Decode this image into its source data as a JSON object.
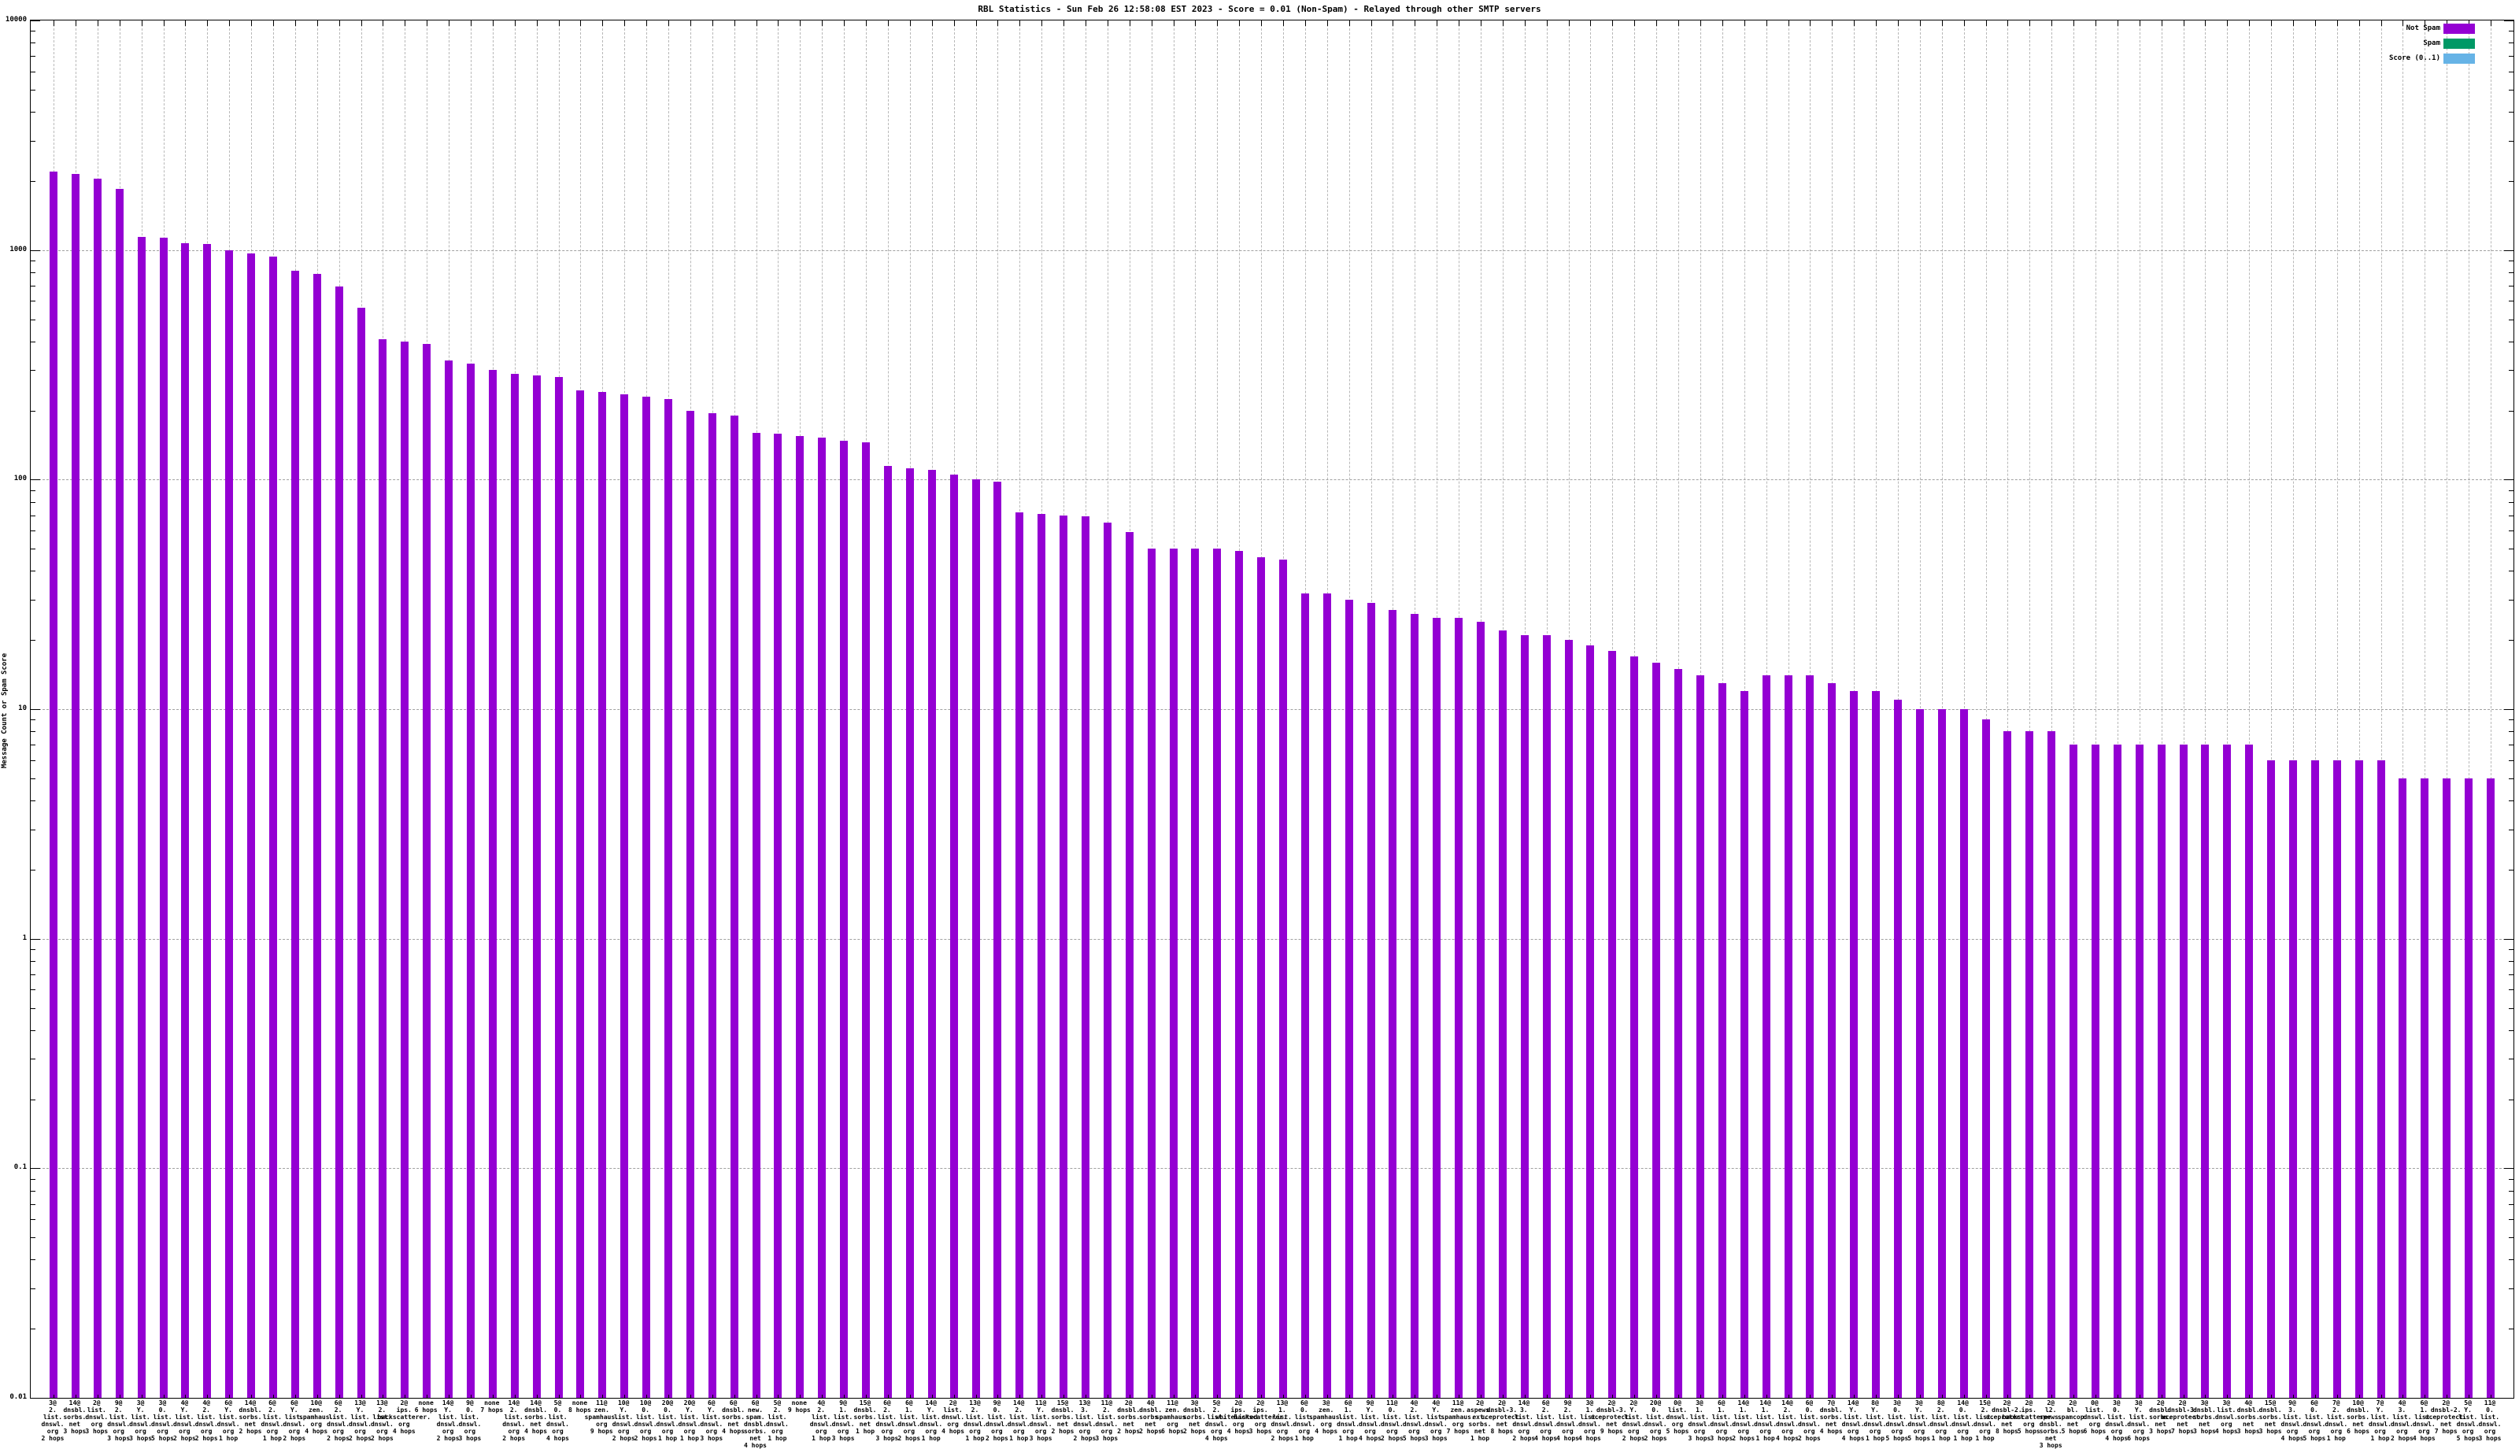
{
  "chart_data": {
    "type": "bar",
    "title": "RBL Statistics - Sun Feb 26 12:58:08 EST 2023 - Score = 0.01 (Non-Spam) - Relayed through other SMTP servers",
    "ylabel": "Message Count or Spam Score",
    "yscale": "log",
    "ylim": [
      0.01,
      10000
    ],
    "ytick_labels": [
      "10000",
      "1000",
      "100",
      "10",
      "1",
      "0.1",
      "0.01"
    ],
    "grid": "dashed",
    "legend_position": "top-right",
    "legend": [
      {
        "label": "Not Spam",
        "color": "#9400d3"
      },
      {
        "label": "Spam",
        "color": "#009966"
      },
      {
        "label": "Score (0..1)",
        "color": "#66b3e6"
      }
    ],
    "categories": [
      "3@ 2.list.dnswl.org 2 hops",
      "14@ dnsbl.sorbs.net 3 hops",
      "2@ list.dnswl.org 3 hops",
      "9@ 2.list.dnswl.org 3 hops",
      "3@ Y.list.dnswl.org 3 hops",
      "3@ 0.list.dnswl.org 5 hops",
      "4@ Y.list.dnswl.org 2 hops",
      "4@ 2.list.dnswl.org 2 hops",
      "6@ Y.list.dnswl.org 1 hop",
      "14@ dnsbl.sorbs.net 2 hops",
      "6@ 2.list.dnswl.org 1 hop",
      "6@ Y.list.dnswl.org 2 hops",
      "10@ zen.spamhaus.org 4 hops",
      "6@ 2.list.dnswl.org 2 hops",
      "13@ Y.list.dnswl.org 2 hops",
      "13@ 2.list.dnswl.org 2 hops",
      "2@ ips.backscatterer.org 4 hops",
      "none 6 hops",
      "14@ Y.list.dnswl.org 2 hops",
      "9@ 0.list.dnswl.org 3 hops",
      "none 7 hops",
      "14@ 2.list.dnswl.org 2 hops",
      "14@ dnsbl.sorbs.net 4 hops",
      "5@ 0.list.dnswl.org 4 hops",
      "none 8 hops",
      "11@ zen.spamhaus.org 9 hops",
      "10@ Y.list.dnswl.org 2 hops",
      "10@ 0.list.dnswl.org 2 hops",
      "20@ 0.list.dnswl.org 1 hop",
      "20@ Y.list.dnswl.org 1 hop",
      "6@ Y.list.dnswl.org 3 hops",
      "6@ dnsbl.sorbs.net 4 hops",
      "6@ new.spam.dnsbl.sorbs.net 4 hops",
      "5@ 2.list.dnswl.org 1 hop",
      "none 9 hops",
      "4@ 2.list.dnswl.org 1 hop",
      "9@ 1.list.dnswl.org 3 hops",
      "15@ dnsbl.sorbs.net 1 hop",
      "6@ 2.list.dnswl.org 3 hops",
      "6@ 1.list.dnswl.org 2 hops",
      "14@ Y.list.dnswl.org 1 hop",
      "2@ list.dnswl.org 4 hops",
      "13@ 2.list.dnswl.org 1 hop",
      "9@ 0.list.dnswl.org 2 hops",
      "14@ 2.list.dnswl.org 1 hop",
      "11@ Y.list.dnswl.org 3 hops",
      "15@ dnsbl.sorbs.net 2 hops",
      "13@ 3.list.dnswl.org 2 hops",
      "11@ 2.list.dnswl.org 3 hops",
      "2@ dnsbl.sorbs.net 2 hops",
      "4@ dnsbl.sorbs.net 2 hops",
      "11@ zen.spamhaus.org 6 hops",
      "3@ dnsbl.sorbs.net 2 hops",
      "5@ 2.list.dnswl.org 4 hops",
      "2@ ips.whitelisted.org 4 hops",
      "2@ ips.backscatterer.org 3 hops",
      "13@ 1.list.dnswl.org 2 hops",
      "6@ 0.list.dnswl.org 1 hop",
      "3@ zen.spamhaus.org 4 hops",
      "6@ 1.list.dnswl.org 1 hop",
      "9@ Y.list.dnswl.org 4 hops",
      "11@ 0.list.dnswl.org 2 hops",
      "4@ 2.list.dnswl.org 5 hops",
      "4@ Y.list.dnswl.org 3 hops",
      "11@ zen.spamhaus.org 7 hops",
      "2@ aspews.ext.sorbs.net 1 hop",
      "2@ dnsbl-3.uceprotect.net 8 hops",
      "14@ 3.list.dnswl.org 2 hops",
      "6@ 2.list.dnswl.org 4 hops",
      "9@ 2.list.dnswl.org 4 hops",
      "3@ 1.list.dnswl.org 4 hops",
      "2@ dnsbl-3.uceprotect.net 9 hops",
      "2@ Y.list.dnswl.org 2 hops",
      "20@ 0.list.dnswl.org 2 hops",
      "0@ list.dnswl.org 5 hops",
      "3@ 1.list.dnswl.org 3 hops",
      "6@ 1.list.dnswl.org 3 hops",
      "14@ 1.list.dnswl.org 2 hops",
      "14@ 1.list.dnswl.org 1 hop",
      "14@ 2.list.dnswl.org 4 hops",
      "6@ 0.list.dnswl.org 2 hops",
      "7@ dnsbl.sorbs.net 4 hops",
      "14@ Y.list.dnswl.org 4 hops",
      "8@ Y.list.dnswl.org 1 hop",
      "3@ 0.list.dnswl.org 5 hops",
      "3@ Y.list.dnswl.org 5 hops",
      "8@ 2.list.dnswl.org 1 hop",
      "14@ 0.list.dnswl.org 1 hop",
      "15@ 2.list.dnswl.org 1 hop",
      "2@ dnsbl-2.uceprotect.net 8 hops",
      "2@ ips.backscatterer.org 5 hops",
      "2@ l2.spews.dnsbl.sorbs.net 3 hops",
      "2@ bl.spamcop.net 5 hops",
      "0@ list.dnswl.org 6 hops",
      "3@ 0.list.dnswl.org 4 hops",
      "3@ Y.list.dnswl.org 6 hops",
      "2@ dnsbl.sorbs.net 3 hops",
      "2@ dnsbl-3.uceprotect.net 7 hops",
      "3@ dnsbl.sorbs.net 3 hops",
      "3@ list.dnswl.org 4 hops",
      "4@ dnsbl.sorbs.net 3 hops",
      "15@ dnsbl.sorbs.net 3 hops",
      "9@ 3.list.dnswl.org 4 hops",
      "6@ 0.list.dnswl.org 5 hops",
      "7@ 2.list.dnswl.org 1 hop",
      "10@ dnsbl.sorbs.net 6 hops",
      "7@ Y.list.dnswl.org 1 hop",
      "4@ 3.list.dnswl.org 2 hops",
      "6@ 1.list.dnswl.org 4 hops",
      "2@ dnsbl-2.uceprotect.net 7 hops",
      "5@ Y.list.dnswl.org 5 hops",
      "11@ 0.list.dnswl.org 3 hops"
    ],
    "series": [
      {
        "name": "Not Spam",
        "color": "#9400d3",
        "values": [
          2200,
          2150,
          2050,
          1850,
          1140,
          1130,
          1070,
          1060,
          1000,
          970,
          940,
          815,
          790,
          695,
          560,
          410,
          400,
          390,
          330,
          320,
          300,
          290,
          285,
          280,
          245,
          240,
          235,
          230,
          225,
          200,
          195,
          190,
          160,
          158,
          155,
          152,
          148,
          145,
          115,
          112,
          110,
          105,
          100,
          98,
          72,
          71,
          70,
          69,
          65,
          59,
          50,
          50,
          50,
          50,
          49,
          46,
          45,
          32,
          32,
          30,
          29,
          27,
          26,
          25,
          25,
          24,
          22,
          21,
          21,
          20,
          19,
          18,
          17,
          16,
          15,
          14,
          13,
          12,
          14,
          14,
          14,
          13,
          12,
          12,
          11,
          10,
          10,
          10,
          9,
          8,
          8,
          8,
          7,
          7,
          7,
          7,
          7,
          7,
          7,
          7,
          7,
          6,
          6,
          6,
          6,
          6,
          6,
          5,
          5,
          5,
          5,
          5
        ]
      }
    ]
  }
}
